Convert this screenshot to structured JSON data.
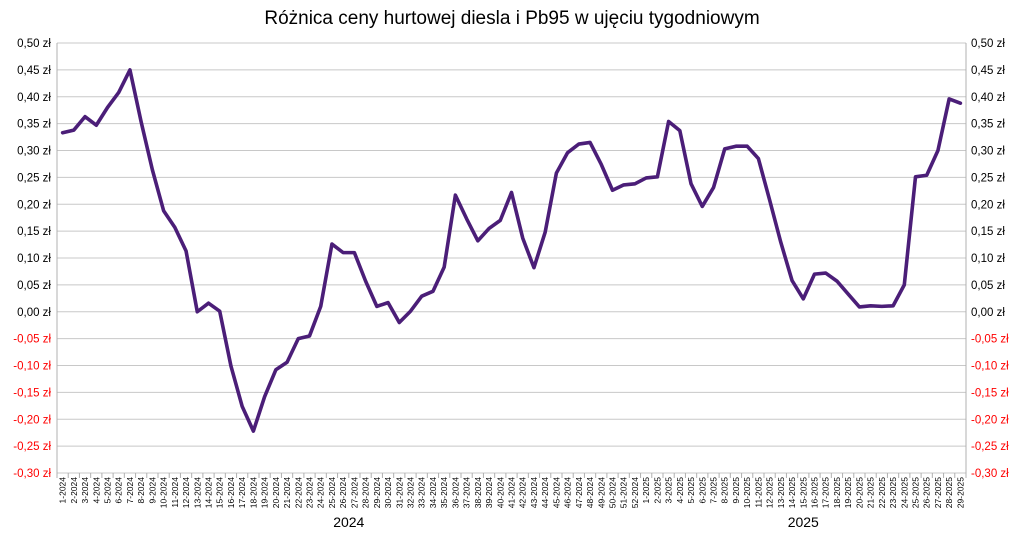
{
  "chart_data": {
    "type": "line",
    "title": "Różnica ceny hurtowej diesla i Pb95 w ujęciu tygodniowym",
    "xlabel": "",
    "ylabel": "",
    "ylim": [
      -0.3,
      0.5
    ],
    "ytick_step": 0.05,
    "ytick_labels": [
      "0,50 zł",
      "0,45 zł",
      "0,40 zł",
      "0,35 zł",
      "0,30 zł",
      "0,25 zł",
      "0,20 zł",
      "0,15 zł",
      "0,10 zł",
      "0,05 zł",
      "0,00 zł",
      "-0,05 zł",
      "-0,10 zł",
      "-0,15 zł",
      "-0,20 zł",
      "-0,25 zł",
      "-0,30 zł"
    ],
    "positive_tick_color": "#000000",
    "negative_tick_color": "#ff0000",
    "line_color": "#4b1e78",
    "grid": true,
    "grid_color": "#c8c8c8",
    "year_labels": [
      {
        "text": "2024",
        "start_index": 0,
        "end_index": 51
      },
      {
        "text": "2025",
        "start_index": 52,
        "end_index": 80
      }
    ],
    "categories": [
      "1-2024",
      "2-2024",
      "3-2024",
      "4-2024",
      "5-2024",
      "6-2024",
      "7-2024",
      "8-2024",
      "9-2024",
      "10-2024",
      "11-2024",
      "12-2024",
      "13-2024",
      "14-2024",
      "15-2024",
      "16-2024",
      "17-2024",
      "18-2024",
      "19-2024",
      "20-2024",
      "21-2024",
      "22-2024",
      "23-2024",
      "24-2024",
      "25-2024",
      "26-2024",
      "27-2024",
      "28-2024",
      "29-2024",
      "30-2024",
      "31-2024",
      "32-2024",
      "33-2024",
      "34-2024",
      "35-2024",
      "36-2024",
      "37-2024",
      "38-2024",
      "39-2024",
      "40-2024",
      "41-2024",
      "42-2024",
      "43-2024",
      "44-2024",
      "45-2024",
      "46-2024",
      "47-2024",
      "48-2024",
      "49-2024",
      "50-2024",
      "51-2024",
      "52-2024",
      "1-2025",
      "2-2025",
      "3-2025",
      "4-2025",
      "5-2025",
      "6-2025",
      "7-2025",
      "8-2025",
      "9-2025",
      "10-2025",
      "11-2025",
      "12-2025",
      "13-2025",
      "14-2025",
      "15-2025",
      "16-2025",
      "17-2025",
      "18-2025",
      "19-2025",
      "20-2025",
      "21-2025",
      "22-2025",
      "23-2025",
      "24-2025",
      "25-2025",
      "26-2025",
      "27-2025",
      "28-2025",
      "29-2025"
    ],
    "values": [
      0.333,
      0.338,
      0.363,
      0.347,
      0.38,
      0.408,
      0.45,
      0.353,
      0.264,
      0.188,
      0.157,
      0.113,
      0.0,
      0.016,
      0.001,
      -0.101,
      -0.176,
      -0.222,
      -0.158,
      -0.108,
      -0.094,
      -0.05,
      -0.045,
      0.01,
      0.126,
      0.11,
      0.11,
      0.057,
      0.01,
      0.017,
      -0.02,
      0.001,
      0.029,
      0.038,
      0.083,
      0.217,
      0.173,
      0.132,
      0.155,
      0.17,
      0.222,
      0.137,
      0.082,
      0.148,
      0.258,
      0.296,
      0.312,
      0.315,
      0.274,
      0.226,
      0.236,
      0.238,
      0.249,
      0.251,
      0.354,
      0.337,
      0.238,
      0.196,
      0.231,
      0.303,
      0.308,
      0.308,
      0.285,
      0.208,
      0.129,
      0.058,
      0.024,
      0.07,
      0.072,
      0.057,
      0.033,
      0.009,
      0.011,
      0.01,
      0.011,
      0.05,
      0.251,
      0.254,
      0.3,
      0.396,
      0.388
    ]
  }
}
